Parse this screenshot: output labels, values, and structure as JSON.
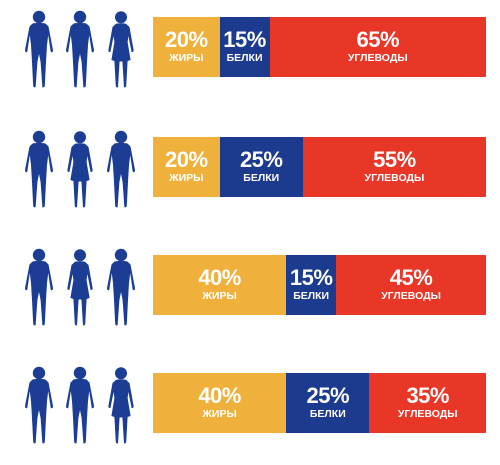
{
  "chart_data": {
    "type": "bar",
    "orientation": "horizontal-stacked-100",
    "categories": [
      "row-1",
      "row-2",
      "row-3",
      "row-4"
    ],
    "series": [
      {
        "name": "ЖИРЫ",
        "color": "#efb13b",
        "values": [
          20,
          20,
          40,
          40
        ]
      },
      {
        "name": "БЕЛКИ",
        "color": "#1c3b8f",
        "values": [
          15,
          25,
          15,
          25
        ]
      },
      {
        "name": "УГЛЕВОДЫ",
        "color": "#e83627",
        "values": [
          65,
          55,
          45,
          35
        ]
      }
    ],
    "data_labels": [
      [
        "20%",
        "15%",
        "65%"
      ],
      [
        "20%",
        "25%",
        "55%"
      ],
      [
        "40%",
        "15%",
        "45%"
      ],
      [
        "40%",
        "25%",
        "35%"
      ]
    ],
    "icon_rows": [
      [
        "male-figure-icon",
        "male-figure-icon",
        "female-figure-icon"
      ],
      [
        "male-figure-icon",
        "female-figure-icon",
        "male-figure-icon"
      ],
      [
        "male-figure-icon",
        "female-figure-icon",
        "male-figure-icon"
      ],
      [
        "male-figure-icon",
        "male-figure-icon",
        "female-figure-icon"
      ]
    ],
    "icon_color": "#1b3e94",
    "legend": "none",
    "grid": false
  }
}
